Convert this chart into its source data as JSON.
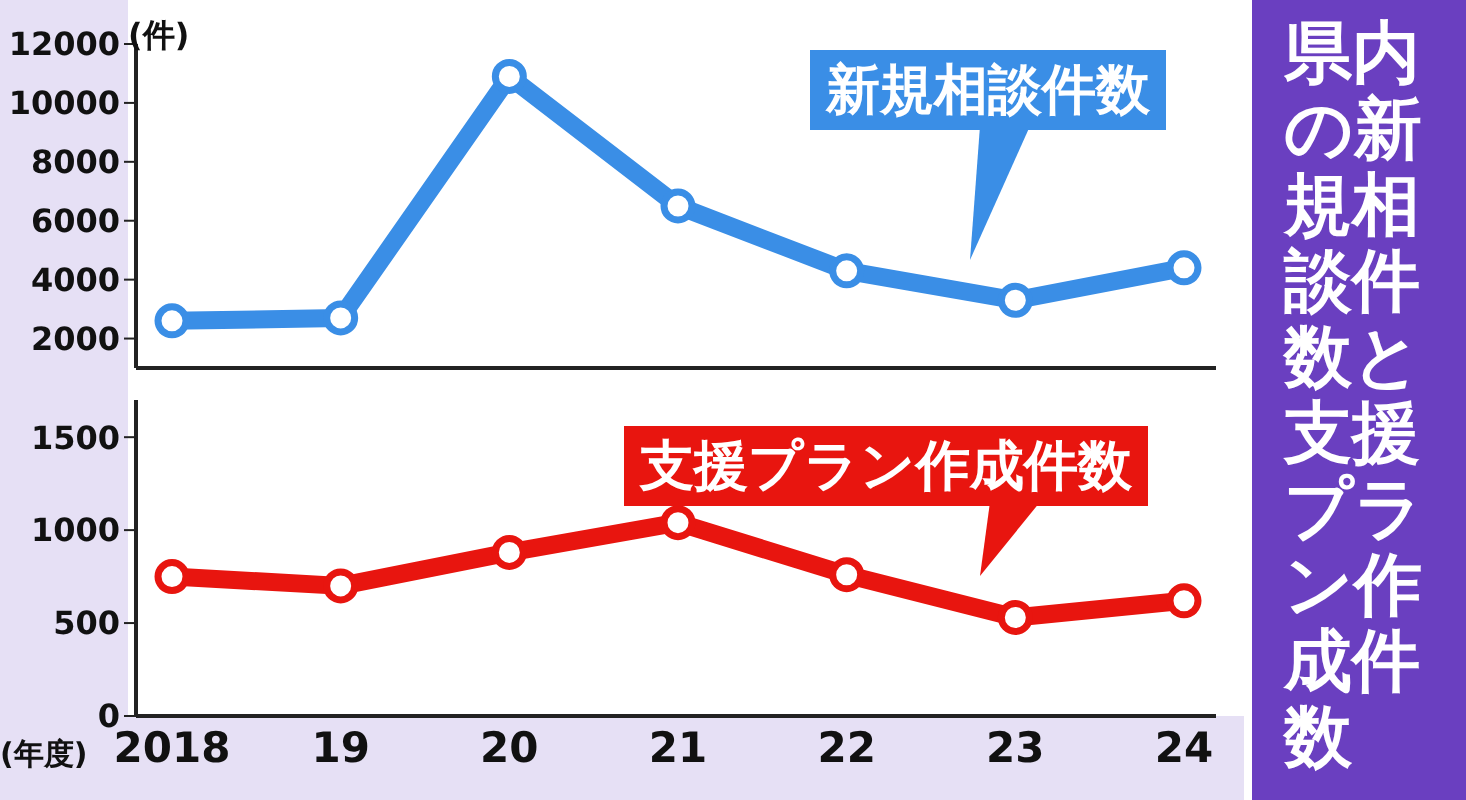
{
  "chart_data": [
    {
      "type": "line",
      "title": "県内の新規相談件数と支援プラン作成件数",
      "ylabel": "(件)",
      "categories": [
        "2018",
        "19",
        "20",
        "21",
        "22",
        "23",
        "24"
      ],
      "series": [
        {
          "name": "新規相談件数",
          "color": "#3a8ee6",
          "values": [
            2600,
            2700,
            10900,
            6500,
            4300,
            3300,
            4400
          ]
        }
      ],
      "ylim": [
        1000,
        12000
      ],
      "yticks": [
        2000,
        4000,
        6000,
        8000,
        10000,
        12000
      ],
      "marker": "circle",
      "tick_labels": "y"
    },
    {
      "type": "line",
      "xlabel": "(年度)",
      "categories": [
        "2018",
        "19",
        "20",
        "21",
        "22",
        "23",
        "24"
      ],
      "series": [
        {
          "name": "支援プラン作成件数",
          "color": "#e8150f",
          "values": [
            750,
            700,
            880,
            1040,
            760,
            530,
            620
          ]
        }
      ],
      "ylim": [
        0,
        1700
      ],
      "yticks": [
        0,
        500,
        1000,
        1500
      ],
      "marker": "circle"
    }
  ]
}
